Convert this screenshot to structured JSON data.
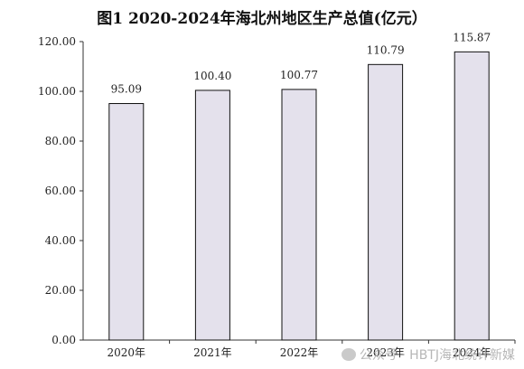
{
  "chart_data": {
    "type": "bar",
    "title": "图1  2020-2024年海北州地区生产总值(亿元）",
    "categories": [
      "2020年",
      "2021年",
      "2022年",
      "2023年",
      "2024年"
    ],
    "values": [
      95.09,
      100.4,
      100.77,
      110.79,
      115.87
    ],
    "value_labels": [
      "95.09",
      "100.40",
      "100.77",
      "110.79",
      "115.87"
    ],
    "ylim": [
      0,
      120
    ],
    "yticks": [
      "0.00",
      "20.00",
      "40.00",
      "60.00",
      "80.00",
      "100.00",
      "120.00"
    ],
    "grid": false,
    "bar_color": "#e4e1ec",
    "bar_edge_color": "#111111"
  },
  "watermark": {
    "text": "公众号 · HBTJ海北统计新媒",
    "icon": "wechat-icon"
  }
}
